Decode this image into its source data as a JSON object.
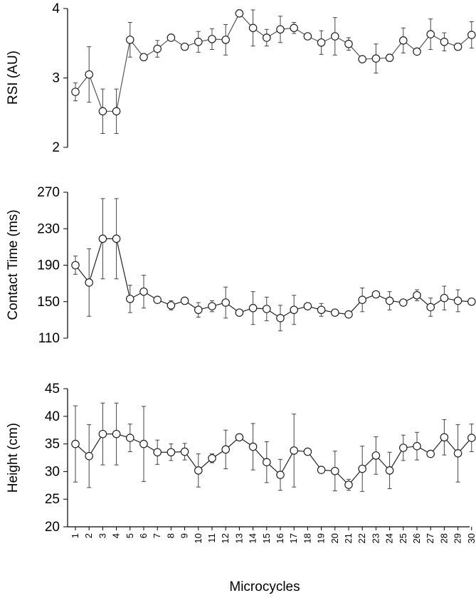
{
  "chart_data": [
    {
      "type": "line",
      "ylabel": "RSI (AU)",
      "ylim": [
        2,
        4
      ],
      "yticks": [
        2,
        3,
        4
      ],
      "x": [
        1,
        2,
        3,
        4,
        5,
        6,
        7,
        8,
        9,
        10,
        11,
        12,
        13,
        14,
        15,
        16,
        17,
        18,
        19,
        20,
        21,
        22,
        23,
        24,
        25,
        26,
        27,
        28,
        29,
        30
      ],
      "values": [
        2.8,
        3.05,
        2.52,
        2.52,
        3.55,
        3.3,
        3.42,
        3.58,
        3.45,
        3.52,
        3.56,
        3.55,
        3.93,
        3.72,
        3.58,
        3.7,
        3.72,
        3.6,
        3.51,
        3.6,
        3.49,
        3.27,
        3.28,
        3.29,
        3.54,
        3.38,
        3.63,
        3.52,
        3.45,
        3.62
      ],
      "errors": [
        0.13,
        0.4,
        0.32,
        0.32,
        0.25,
        0.05,
        0.12,
        0.05,
        0.04,
        0.15,
        0.15,
        0.22,
        0.05,
        0.26,
        0.12,
        0.19,
        0.08,
        0.03,
        0.17,
        0.27,
        0.09,
        0.03,
        0.21,
        0.05,
        0.18,
        0.03,
        0.22,
        0.13,
        0.05,
        0.19
      ]
    },
    {
      "type": "line",
      "ylabel": "Contact Time (ms)",
      "ylim": [
        110,
        270
      ],
      "yticks": [
        110,
        150,
        190,
        230,
        270
      ],
      "x": [
        1,
        2,
        3,
        4,
        5,
        6,
        7,
        8,
        9,
        10,
        11,
        12,
        13,
        14,
        15,
        16,
        17,
        18,
        19,
        20,
        21,
        22,
        23,
        24,
        25,
        26,
        27,
        28,
        29,
        30
      ],
      "values": [
        190,
        171,
        219,
        219,
        153,
        161,
        152,
        146,
        151,
        141,
        145,
        149,
        138,
        143,
        142,
        132,
        141,
        145,
        141,
        138,
        136,
        152,
        158,
        151,
        149,
        157,
        144,
        154,
        151,
        150
      ],
      "errors": [
        10,
        37,
        44,
        44,
        15,
        18,
        3,
        5,
        2,
        8,
        6,
        17,
        3,
        18,
        13,
        14,
        16,
        2,
        7,
        2,
        2,
        13,
        3,
        10,
        3,
        6,
        10,
        13,
        12,
        2
      ]
    },
    {
      "type": "line",
      "ylabel": "Height (cm)",
      "xlabel": "Microcycles",
      "ylim": [
        20,
        45
      ],
      "yticks": [
        20,
        25,
        30,
        35,
        40,
        45
      ],
      "x": [
        1,
        2,
        3,
        4,
        5,
        6,
        7,
        8,
        9,
        10,
        11,
        12,
        13,
        14,
        15,
        16,
        17,
        18,
        19,
        20,
        21,
        22,
        23,
        24,
        25,
        26,
        27,
        28,
        29,
        30
      ],
      "xticks": [
        "1",
        "2",
        "3",
        "4",
        "5",
        "6",
        "7",
        "8",
        "9",
        "10",
        "11",
        "12",
        "13",
        "14",
        "15",
        "16",
        "17",
        "18",
        "19",
        "20",
        "21",
        "22",
        "23",
        "24",
        "25",
        "26",
        "27",
        "28",
        "29",
        "30"
      ],
      "values": [
        35,
        32.8,
        36.8,
        36.8,
        36.1,
        35,
        33.5,
        33.5,
        33.6,
        30.2,
        32.4,
        34,
        36.2,
        34.5,
        31.7,
        29.4,
        33.8,
        33.6,
        30.3,
        30.1,
        27.6,
        30.5,
        32.9,
        30.2,
        34.3,
        34.6,
        33.2,
        36.2,
        33.3,
        36.1
      ],
      "errors": [
        6.9,
        5.7,
        5.6,
        5.6,
        2.5,
        6.8,
        2.2,
        1.5,
        1.5,
        3,
        0.8,
        3.5,
        0.6,
        4.2,
        3.7,
        2.8,
        6.6,
        0.4,
        0.4,
        3.6,
        1,
        4.1,
        3.4,
        3.3,
        2.3,
        2.5,
        0.5,
        3.2,
        5.2,
        2.5
      ]
    }
  ]
}
